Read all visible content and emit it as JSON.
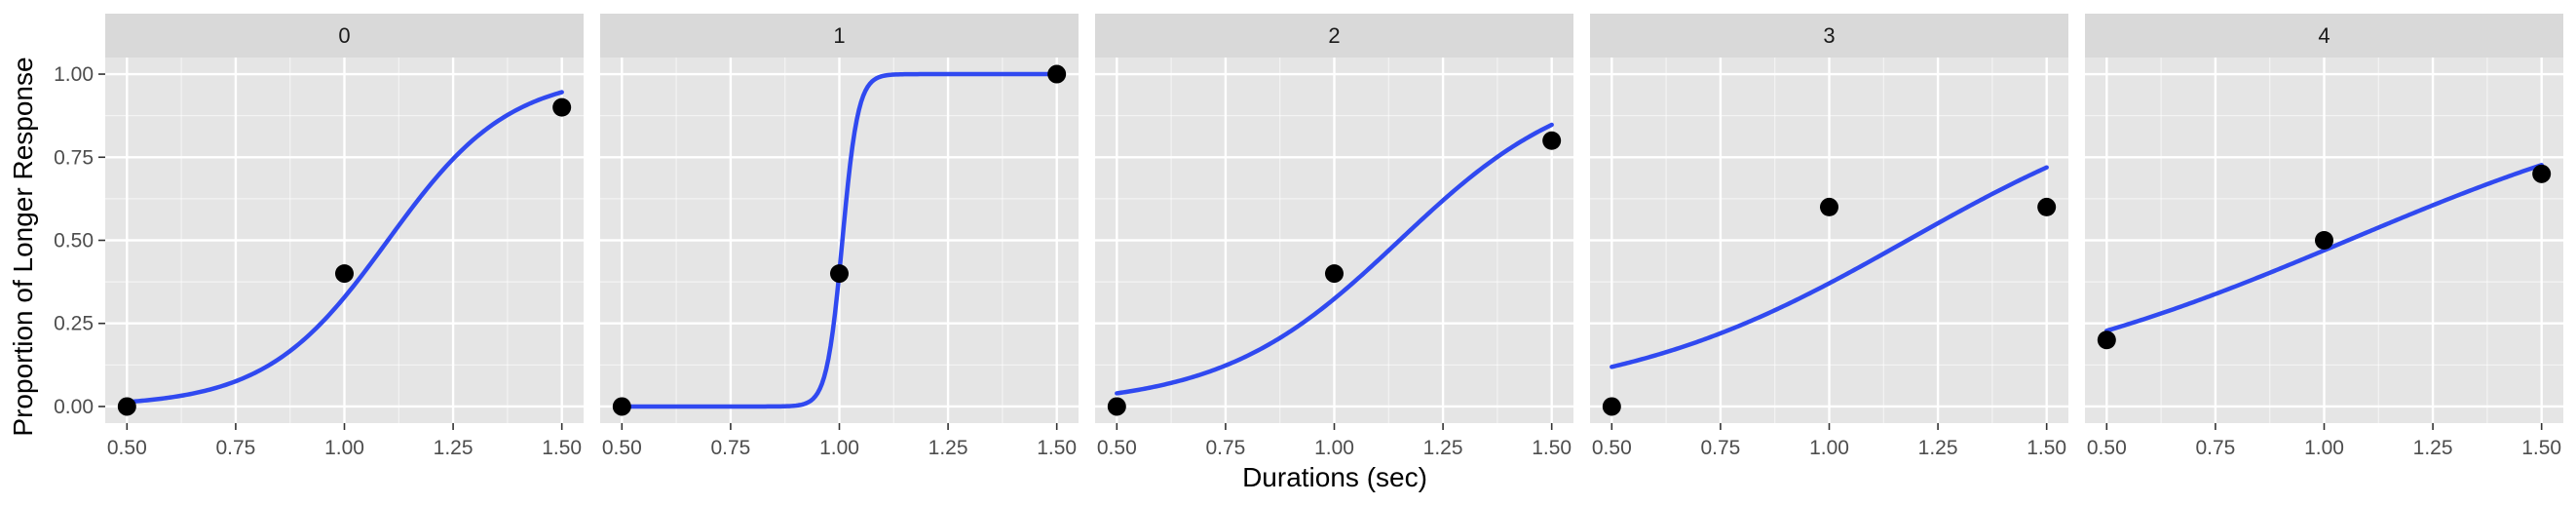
{
  "chart_data": {
    "type": "scatter",
    "facet_by": "condition",
    "xlabel": "Durations (sec)",
    "ylabel": "Proportion of Longer Response",
    "xlim": [
      0.45,
      1.55
    ],
    "ylim": [
      -0.05,
      1.05
    ],
    "x_ticks": [
      "0.50",
      "0.75",
      "1.00",
      "1.25",
      "1.50"
    ],
    "y_ticks": [
      "0.00",
      "0.25",
      "0.50",
      "0.75",
      "1.00"
    ],
    "grid": true,
    "colors": {
      "panel_bg": "#e5e5e5",
      "strip_bg": "#d9d9d9",
      "grid_major": "#ffffff",
      "fit_line": "#3049f0",
      "points": "#000000",
      "axis_text": "#4d4d4d"
    },
    "panels": [
      {
        "label": "0",
        "points": {
          "x": [
            0.5,
            1.0,
            1.5
          ],
          "y": [
            0.0,
            0.4,
            0.9
          ]
        },
        "fit": {
          "model": "logistic",
          "mu": 1.1,
          "s": 0.14
        }
      },
      {
        "label": "1",
        "points": {
          "x": [
            0.5,
            1.0,
            1.5
          ],
          "y": [
            0.0,
            0.4,
            1.0
          ]
        },
        "fit": {
          "model": "logistic",
          "mu": 1.007,
          "s": 0.018
        }
      },
      {
        "label": "2",
        "points": {
          "x": [
            0.5,
            1.0,
            1.5
          ],
          "y": [
            0.0,
            0.4,
            0.8
          ]
        },
        "fit": {
          "model": "logistic",
          "mu": 1.15,
          "s": 0.204
        }
      },
      {
        "label": "3",
        "points": {
          "x": [
            0.5,
            1.0,
            1.5
          ],
          "y": [
            0.0,
            0.6,
            0.6
          ]
        },
        "fit": {
          "model": "logistic",
          "mu": 1.18,
          "s": 0.34
        }
      },
      {
        "label": "4",
        "points": {
          "x": [
            0.5,
            1.0,
            1.5
          ],
          "y": [
            0.2,
            0.5,
            0.7
          ]
        },
        "fit": {
          "model": "logistic",
          "mu": 1.055,
          "s": 0.455
        }
      }
    ]
  }
}
